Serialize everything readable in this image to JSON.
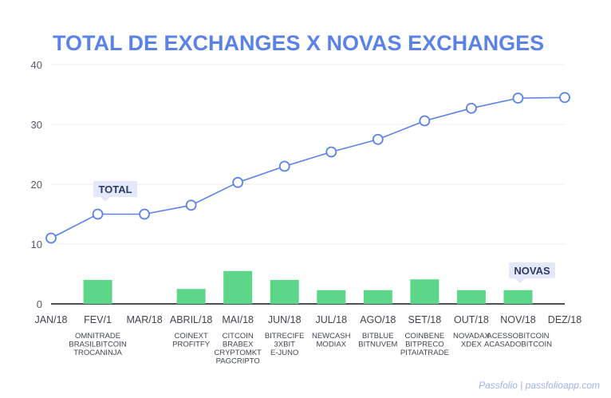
{
  "chart_data": {
    "type": "line",
    "title": "TOTAL DE EXCHANGES X NOVAS EXCHANGES",
    "categories": [
      "JAN/18",
      "FEV/1",
      "MAR/18",
      "ABRIL/18",
      "MAI/18",
      "JUN/18",
      "JUL/18",
      "AGO/18",
      "SET/18",
      "OUT/18",
      "NOV/18",
      "DEZ/18"
    ],
    "ylim": [
      0,
      40
    ],
    "yticks": [
      0,
      10,
      20,
      30,
      40
    ],
    "grid": true,
    "series": [
      {
        "name": "TOTAL",
        "type": "line",
        "color": "#5b82e6",
        "values": [
          11,
          15,
          15,
          16.5,
          20.3,
          23,
          25.4,
          27.5,
          30.6,
          32.7,
          34.4,
          34.5
        ]
      },
      {
        "name": "NOVAS",
        "type": "bar",
        "color": "#5dd68a",
        "values": [
          0,
          4,
          0,
          2.5,
          5.5,
          4,
          2.3,
          2.3,
          4.1,
          2.3,
          2.3,
          0
        ]
      }
    ],
    "new_exchanges": [
      [],
      [
        "OMNITRADE",
        "BRASILBITCOIN",
        "TROCANINJA"
      ],
      [],
      [
        "COINEXT",
        "PROFITFY"
      ],
      [
        "CITCOIN",
        "BRABEX",
        "CRYPTOMKT",
        "PAGCRIPTO"
      ],
      [
        "BITRECIFE",
        "3XBIT",
        "E-JUNO"
      ],
      [
        "NEWCASH",
        "MODIAX"
      ],
      [
        "BITBLUE",
        "BITNUVEM"
      ],
      [
        "COINBENE",
        "BITPRECO",
        "PITAIATRADE"
      ],
      [
        "NOVADAX",
        "XDEX"
      ],
      [
        "ACESSOBITCOIN",
        "ACASADOBITCOIN"
      ],
      []
    ]
  },
  "footer": "Passfolio | passfolioapp.com"
}
